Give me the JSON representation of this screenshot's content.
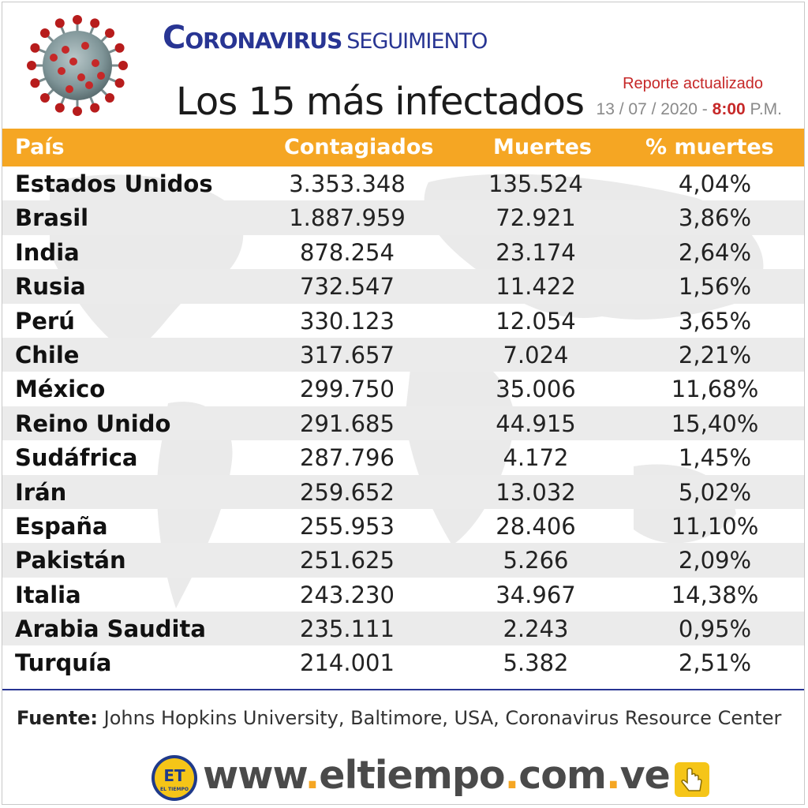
{
  "header": {
    "title_main": "Coronavirus",
    "title_sub": "seguimiento",
    "subtitle": "Los 15 más infectados",
    "report_label": "Reporte actualizado",
    "report_date": "13 / 07 / 2020 -",
    "report_time": "8:00",
    "report_ampm": "P.M."
  },
  "table": {
    "headers": [
      "País",
      "Contagiados",
      "Muertes",
      "% muertes"
    ],
    "rows": [
      {
        "country": "Estados Unidos",
        "cases": "3.353.348",
        "deaths": "135.524",
        "pct": "4,04%"
      },
      {
        "country": "Brasil",
        "cases": "1.887.959",
        "deaths": "72.921",
        "pct": "3,86%"
      },
      {
        "country": "India",
        "cases": "878.254",
        "deaths": "23.174",
        "pct": "2,64%"
      },
      {
        "country": "Rusia",
        "cases": "732.547",
        "deaths": "11.422",
        "pct": "1,56%"
      },
      {
        "country": "Perú",
        "cases": "330.123",
        "deaths": "12.054",
        "pct": "3,65%"
      },
      {
        "country": "Chile",
        "cases": "317.657",
        "deaths": "7.024",
        "pct": "2,21%"
      },
      {
        "country": "México",
        "cases": "299.750",
        "deaths": "35.006",
        "pct": "11,68%"
      },
      {
        "country": "Reino Unido",
        "cases": "291.685",
        "deaths": "44.915",
        "pct": "15,40%"
      },
      {
        "country": "Sudáfrica",
        "cases": "287.796",
        "deaths": "4.172",
        "pct": "1,45%"
      },
      {
        "country": "Irán",
        "cases": "259.652",
        "deaths": "13.032",
        "pct": "5,02%"
      },
      {
        "country": "España",
        "cases": "255.953",
        "deaths": "28.406",
        "pct": "11,10%"
      },
      {
        "country": "Pakistán",
        "cases": "251.625",
        "deaths": "5.266",
        "pct": "2,09%"
      },
      {
        "country": "Italia",
        "cases": "243.230",
        "deaths": "34.967",
        "pct": "14,38%"
      },
      {
        "country": "Arabia Saudita",
        "cases": "235.111",
        "deaths": "2.243",
        "pct": "0,95%"
      },
      {
        "country": "Turquía",
        "cases": "214.001",
        "deaths": "5.382",
        "pct": "2,51%"
      }
    ]
  },
  "source": {
    "label": "Fuente:",
    "text": " Johns Hopkins University, Baltimore, USA, Coronavirus Resource Center"
  },
  "footer": {
    "logo_text": "ET",
    "logo_subtext": "EL TIEMPO",
    "url_parts": [
      "www",
      ".",
      "eltiempo",
      ".",
      "com",
      ".",
      "ve"
    ],
    "icons": [
      "virus-icon",
      "logo-icon",
      "hand-pointer-icon"
    ]
  },
  "colors": {
    "accent": "#f5a623",
    "title_blue": "#283593",
    "report_red": "#c62828",
    "row_alt": "#ebebeb"
  }
}
